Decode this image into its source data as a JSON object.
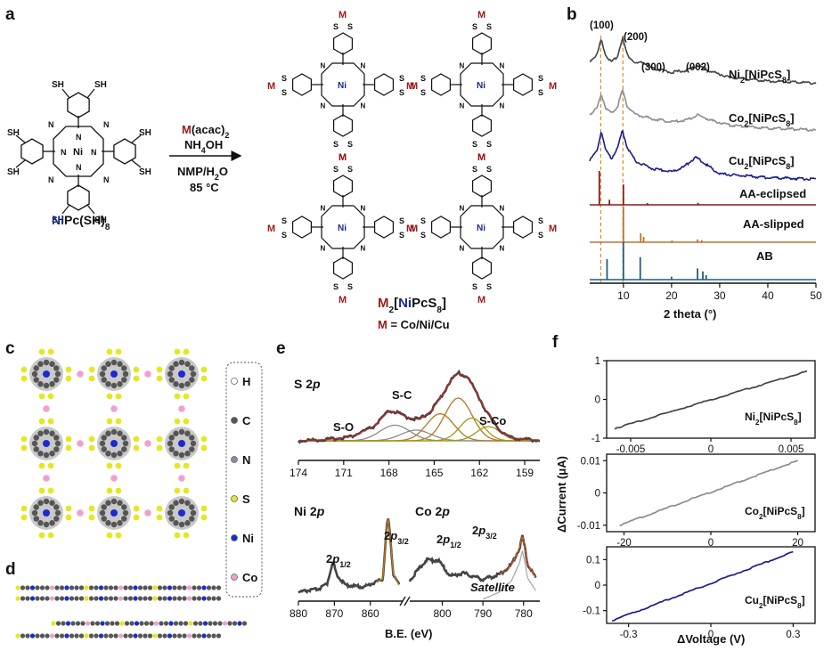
{
  "panels": {
    "a": {
      "letter": "a",
      "reactant": {
        "label_ni": "Ni",
        "label_rest": "Pc(SH)",
        "label_sub": "8",
        "center_atom": "Ni",
        "thiol": "SH",
        "pyr_n": "N"
      },
      "conditions": [
        {
          "colored": "M",
          "rest": "(acac)",
          "sub": "2"
        },
        {
          "colored": "",
          "rest": "NH",
          "sub": "4",
          "after": "OH"
        },
        {
          "colored": "",
          "rest": "NMP/H",
          "sub": "2",
          "after": "O"
        },
        {
          "colored": "",
          "rest": "85 °C",
          "sub": "",
          "after": ""
        }
      ],
      "product": {
        "m": "M",
        "sub2": "2",
        "open": "[",
        "ni": "Ni",
        "pc": "PcS",
        "sub8": "8",
        "close": "]",
        "definition_m": "M",
        "definition_rest": " = Co/Ni/Cu",
        "metal": "M",
        "sulfur": "S",
        "center": "Ni",
        "pyr_n": "N"
      }
    },
    "b": {
      "letter": "b",
      "peak_labels": [
        "(100)",
        "(200)",
        "(300)",
        "(002)"
      ],
      "curve_labels": [
        {
          "pre": "Ni",
          "s1": "2",
          "mid": "[NiPcS",
          "s2": "8",
          "post": "]"
        },
        {
          "pre": "Co",
          "s1": "2",
          "mid": "[NiPcS",
          "s2": "8",
          "post": "]"
        },
        {
          "pre": "Cu",
          "s1": "2",
          "mid": "[NiPcS",
          "s2": "8",
          "post": "]"
        }
      ],
      "sim_labels": [
        "AA-eclipsed",
        "AA-slipped",
        "AB"
      ],
      "xlabel": "2 theta (°)"
    },
    "c": {
      "letter": "c",
      "legend": [
        "H",
        "C",
        "N",
        "S",
        "Ni",
        "Co"
      ]
    },
    "d": {
      "letter": "d"
    },
    "e": {
      "letter": "e",
      "s2p": {
        "title": "S 2",
        "title_p": "p",
        "labels": [
          "S-O",
          "S-C",
          "S-Co"
        ]
      },
      "ni2p": {
        "title": "Ni 2",
        "title_p": "p",
        "peak1": {
          "pre": "2",
          "p": "p",
          "sub": "1/2"
        },
        "peak2": {
          "pre": "2",
          "p": "p",
          "sub": "3/2"
        }
      },
      "co2p": {
        "title": "Co 2",
        "title_p": "p",
        "peak1": {
          "pre": "2",
          "p": "p",
          "sub": "1/2"
        },
        "peak2": {
          "pre": "2",
          "p": "p",
          "sub": "3/2"
        },
        "satellite": "Satellite"
      },
      "xlabel": "B.E. (eV)"
    },
    "f": {
      "letter": "f",
      "ylabel": "ΔCurrent (μA)",
      "xlabel": "ΔVoltage (V)",
      "curve_labels": [
        {
          "pre": "Ni",
          "s1": "2",
          "mid": "[NiPcS",
          "s2": "8",
          "post": "]"
        },
        {
          "pre": "Co",
          "s1": "2",
          "mid": "[NiPcS",
          "s2": "8",
          "post": "]"
        },
        {
          "pre": "Cu",
          "s1": "2",
          "mid": "[NiPcS",
          "s2": "8",
          "post": "]"
        }
      ]
    }
  },
  "colors": {
    "metal_red": "#9a1b1b",
    "ni_blue": "#1a2a8a",
    "ni_curve": "#444444",
    "co_curve": "#8c8c8c",
    "cu_curve": "#1c1c8c",
    "aa_eclipsed": "#8b1a1a",
    "aa_slipped": "#b87333",
    "ab": "#1f5f7f",
    "dash": "#e08a1e",
    "fit_red": "#c0282b",
    "s_c": "#b8761e",
    "s_co": "#9a9a10",
    "s_o": "#8a8a8a",
    "co_blue": "#1d6b8a",
    "atom_s": "#e6e622",
    "atom_c": "#555555",
    "atom_n": "#8a8aa8",
    "atom_ni": "#1a2ccc",
    "atom_co": "#f0a0d0"
  },
  "chart_data": [
    {
      "id": "b-pxrd",
      "type": "line",
      "title": "",
      "xlabel": "2 theta (°)",
      "ylabel": "",
      "xlim": [
        3,
        50
      ],
      "xticks": [
        10,
        20,
        30,
        40,
        50
      ],
      "series": [
        {
          "name": "Ni2[NiPcS8]",
          "points": [
            [
              3,
              0.62
            ],
            [
              4.5,
              0.72
            ],
            [
              5.4,
              0.97
            ],
            [
              6.3,
              0.72
            ],
            [
              7.5,
              0.6
            ],
            [
              8.8,
              0.7
            ],
            [
              9.8,
              1.0
            ],
            [
              10.8,
              0.72
            ],
            [
              12.5,
              0.58
            ],
            [
              14,
              0.6
            ],
            [
              16,
              0.5
            ],
            [
              20,
              0.44
            ],
            [
              23,
              0.47
            ],
            [
              25.5,
              0.55
            ],
            [
              28,
              0.46
            ],
            [
              32,
              0.36
            ],
            [
              40,
              0.3
            ],
            [
              50,
              0.27
            ]
          ]
        },
        {
          "name": "Co2[NiPcS8]",
          "points": [
            [
              3,
              0.45
            ],
            [
              4.5,
              0.55
            ],
            [
              5.4,
              0.78
            ],
            [
              6.3,
              0.56
            ],
            [
              7.5,
              0.47
            ],
            [
              8.8,
              0.58
            ],
            [
              9.8,
              0.85
            ],
            [
              10.8,
              0.58
            ],
            [
              12.5,
              0.45
            ],
            [
              16,
              0.38
            ],
            [
              20,
              0.33
            ],
            [
              23,
              0.36
            ],
            [
              25.5,
              0.44
            ],
            [
              28,
              0.36
            ],
            [
              32,
              0.28
            ],
            [
              40,
              0.23
            ],
            [
              50,
              0.2
            ]
          ]
        },
        {
          "name": "Cu2[NiPcS8]",
          "points": [
            [
              3,
              0.33
            ],
            [
              4.5,
              0.45
            ],
            [
              5.4,
              0.72
            ],
            [
              6.3,
              0.46
            ],
            [
              7.5,
              0.35
            ],
            [
              8.8,
              0.5
            ],
            [
              9.8,
              0.72
            ],
            [
              10.8,
              0.5
            ],
            [
              12.5,
              0.32
            ],
            [
              16,
              0.22
            ],
            [
              20,
              0.18
            ],
            [
              22.5,
              0.24
            ],
            [
              25,
              0.37
            ],
            [
              27.5,
              0.26
            ],
            [
              30,
              0.15
            ],
            [
              40,
              0.1
            ],
            [
              50,
              0.08
            ]
          ]
        },
        {
          "name": "AA-eclipsed",
          "sticks": [
            [
              5.0,
              1.0
            ],
            [
              7.1,
              0.15
            ],
            [
              10.0,
              0.6
            ],
            [
              15.0,
              0.05
            ],
            [
              25.5,
              0.06
            ]
          ]
        },
        {
          "name": "AA-slipped",
          "sticks": [
            [
              10.0,
              1.0
            ],
            [
              13.6,
              0.25
            ],
            [
              14.2,
              0.15
            ],
            [
              20.1,
              0.05
            ],
            [
              25.4,
              0.08
            ],
            [
              26.3,
              0.05
            ]
          ]
        },
        {
          "name": "AB",
          "sticks": [
            [
              6.6,
              0.55
            ],
            [
              10.0,
              1.0
            ],
            [
              13.5,
              0.6
            ],
            [
              20.0,
              0.08
            ],
            [
              25.4,
              0.3
            ],
            [
              26.5,
              0.22
            ],
            [
              27.2,
              0.12
            ]
          ]
        }
      ],
      "reference_lines_x": [
        5.3,
        9.9
      ]
    },
    {
      "id": "e-s2p",
      "type": "line",
      "title": "S 2p",
      "xlabel": "B.E. (eV)",
      "xlim": [
        174,
        158
      ],
      "xticks": [
        174,
        171,
        168,
        165,
        162,
        159
      ],
      "series": [
        {
          "name": "data",
          "points": [
            [
              174,
              0.0
            ],
            [
              172,
              0.02
            ],
            [
              170.5,
              0.06
            ],
            [
              169,
              0.2
            ],
            [
              168,
              0.42
            ],
            [
              167.5,
              0.4
            ],
            [
              166.8,
              0.33
            ],
            [
              166,
              0.3
            ],
            [
              165.2,
              0.42
            ],
            [
              164.6,
              0.6
            ],
            [
              163.9,
              0.85
            ],
            [
              163.4,
              0.95
            ],
            [
              162.8,
              0.9
            ],
            [
              162.2,
              0.68
            ],
            [
              161.7,
              0.47
            ],
            [
              161.2,
              0.3
            ],
            [
              160.6,
              0.14
            ],
            [
              160,
              0.05
            ],
            [
              159,
              0.02
            ],
            [
              158,
              0.01
            ]
          ]
        }
      ]
    },
    {
      "id": "e-ni2p",
      "type": "line",
      "title": "Ni 2p",
      "xlabel": "B.E. (eV)",
      "xticks": [
        880,
        870,
        860
      ],
      "series": [
        {
          "name": "data",
          "points": [
            [
              880,
              0.0
            ],
            [
              874,
              0.05
            ],
            [
              872,
              0.12
            ],
            [
              870.8,
              0.35
            ],
            [
              870.2,
              0.4
            ],
            [
              869.5,
              0.25
            ],
            [
              867,
              0.1
            ],
            [
              862,
              0.07
            ],
            [
              856.5,
              0.18
            ],
            [
              855.4,
              0.93
            ],
            [
              855,
              1.0
            ],
            [
              854.5,
              0.78
            ],
            [
              853.6,
              0.25
            ],
            [
              852,
              0.1
            ]
          ]
        }
      ]
    },
    {
      "id": "e-co2p",
      "type": "line",
      "title": "Co 2p",
      "xlabel": "B.E. (eV)",
      "xticks": [
        800,
        790,
        780
      ],
      "series": [
        {
          "name": "data",
          "points": [
            [
              808,
              0.15
            ],
            [
              804,
              0.4
            ],
            [
              801,
              0.4
            ],
            [
              798,
              0.2
            ],
            [
              795,
              0.24
            ],
            [
              790,
              0.16
            ],
            [
              786,
              0.22
            ],
            [
              783,
              0.34
            ],
            [
              781,
              0.55
            ],
            [
              780.3,
              0.7
            ],
            [
              779.6,
              0.53
            ],
            [
              779,
              0.35
            ],
            [
              777,
              0.18
            ]
          ]
        }
      ]
    },
    {
      "id": "f-ni",
      "type": "line",
      "ylabel": "ΔCurrent (μA)",
      "xlim": [
        -0.0065,
        0.0065
      ],
      "ylim": [
        -1.0,
        1.0
      ],
      "xticks": [
        -0.005,
        0,
        0.005
      ],
      "yticks": [
        -1,
        0,
        1
      ],
      "series": [
        {
          "name": "Ni2[NiPcS8]",
          "points": [
            [
              -0.006,
              -0.75
            ],
            [
              0.006,
              0.73
            ]
          ]
        }
      ]
    },
    {
      "id": "f-co",
      "type": "line",
      "xlim": [
        -24,
        24
      ],
      "ylim": [
        -0.012,
        0.012
      ],
      "xticks": [
        -20,
        0,
        20
      ],
      "yticks": [
        -0.01,
        0,
        0.01
      ],
      "series": [
        {
          "name": "Co2[NiPcS8]",
          "points": [
            [
              -21,
              -0.01
            ],
            [
              20,
              0.01
            ]
          ]
        }
      ]
    },
    {
      "id": "f-cu",
      "type": "line",
      "xlabel": "ΔVoltage (V)",
      "xlim": [
        -0.38,
        0.38
      ],
      "ylim": [
        -0.15,
        0.15
      ],
      "xticks": [
        -0.3,
        0,
        0.3
      ],
      "yticks": [
        -0.1,
        0,
        0.1
      ],
      "series": [
        {
          "name": "Cu2[NiPcS8]",
          "points": [
            [
              -0.36,
              -0.14
            ],
            [
              0.3,
              0.13
            ]
          ]
        }
      ]
    }
  ]
}
